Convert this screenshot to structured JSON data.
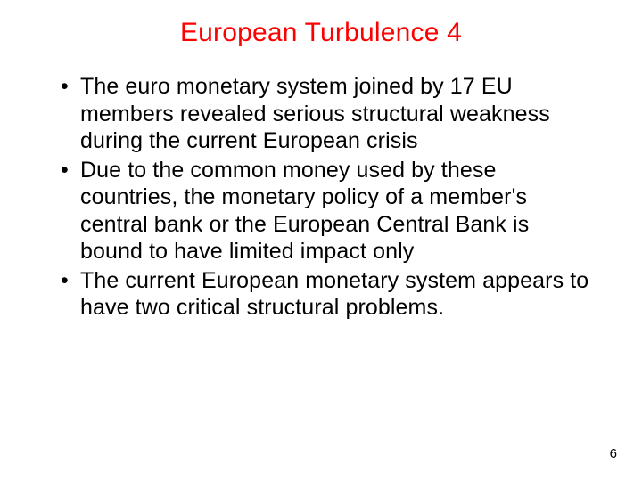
{
  "title": {
    "text": "European Turbulence 4",
    "color": "#ff0000",
    "fontsize": 30
  },
  "bullets": [
    "The euro monetary system joined by 17 EU members revealed serious structural weakness during the current European crisis",
    "Due to the common money used by these countries, the monetary policy of a member's central bank or the European Central Bank is bound to have limited impact only",
    "The current European monetary system appears to have two critical structural problems."
  ],
  "body": {
    "color": "#000000",
    "fontsize": 25
  },
  "background_color": "#ffffff",
  "page_number": "6"
}
